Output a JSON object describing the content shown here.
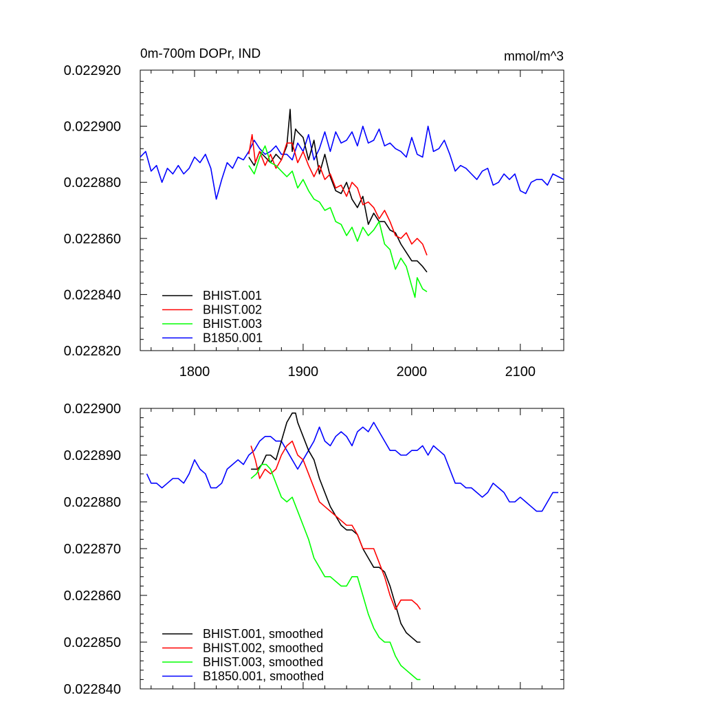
{
  "chart_data": [
    {
      "type": "line",
      "title": "0m-700m DOPr, IND",
      "units": "mmol/m^3",
      "xlim": [
        1750,
        2140
      ],
      "ylim": [
        0.02282,
        0.02292
      ],
      "xticks": [
        1800,
        1900,
        2000,
        2100
      ],
      "xtick_labels": [
        "1800",
        "1900",
        "2000",
        "2100"
      ],
      "yticks": [
        0.02282,
        0.02284,
        0.02286,
        0.02288,
        0.0229,
        0.02292
      ],
      "ytick_labels": [
        "0.022820",
        "0.022840",
        "0.022860",
        "0.022880",
        "0.022900",
        "0.022920"
      ],
      "legend_position": "bottom-left",
      "series": [
        {
          "name": "BHIST.001",
          "color": "#000000",
          "x": [
            1850,
            1855,
            1860,
            1865,
            1870,
            1875,
            1880,
            1885,
            1888,
            1890,
            1893,
            1895,
            1900,
            1905,
            1910,
            1915,
            1920,
            1925,
            1930,
            1935,
            1940,
            1945,
            1950,
            1955,
            1960,
            1965,
            1970,
            1975,
            1980,
            1985,
            1990,
            1995,
            2000,
            2005,
            2010,
            2014
          ],
          "y": [
            0.022889,
            0.022886,
            0.022891,
            0.022889,
            0.022887,
            0.02289,
            0.022888,
            0.022893,
            0.022906,
            0.022891,
            0.022899,
            0.022898,
            0.022896,
            0.022888,
            0.022895,
            0.022883,
            0.02289,
            0.022882,
            0.022877,
            0.022876,
            0.02288,
            0.022874,
            0.022871,
            0.022875,
            0.022865,
            0.022869,
            0.022866,
            0.022866,
            0.022863,
            0.022862,
            0.022858,
            0.022855,
            0.022852,
            0.022852,
            0.02285,
            0.022848
          ]
        },
        {
          "name": "BHIST.002",
          "color": "#ff0000",
          "x": [
            1850,
            1853,
            1856,
            1860,
            1865,
            1870,
            1875,
            1880,
            1885,
            1890,
            1895,
            1900,
            1905,
            1910,
            1915,
            1920,
            1925,
            1930,
            1935,
            1940,
            1945,
            1950,
            1955,
            1960,
            1965,
            1970,
            1975,
            1980,
            1985,
            1990,
            1995,
            2000,
            2005,
            2010,
            2014
          ],
          "y": [
            0.02289,
            0.022897,
            0.022887,
            0.022891,
            0.022886,
            0.02289,
            0.022885,
            0.022888,
            0.022894,
            0.022894,
            0.022887,
            0.022891,
            0.022886,
            0.022882,
            0.022886,
            0.022881,
            0.022883,
            0.022878,
            0.022879,
            0.022875,
            0.02288,
            0.022878,
            0.022872,
            0.022873,
            0.022871,
            0.022867,
            0.02287,
            0.022866,
            0.022861,
            0.02286,
            0.022862,
            0.022858,
            0.02286,
            0.022858,
            0.022854
          ]
        },
        {
          "name": "BHIST.003",
          "color": "#00ff00",
          "x": [
            1850,
            1855,
            1860,
            1865,
            1870,
            1875,
            1880,
            1885,
            1890,
            1895,
            1900,
            1905,
            1910,
            1915,
            1920,
            1925,
            1930,
            1935,
            1940,
            1945,
            1950,
            1955,
            1960,
            1965,
            1970,
            1975,
            1980,
            1985,
            1990,
            1995,
            2000,
            2003,
            2005,
            2010,
            2014
          ],
          "y": [
            0.022886,
            0.022883,
            0.022889,
            0.022893,
            0.022887,
            0.022886,
            0.022884,
            0.022882,
            0.022884,
            0.022878,
            0.022881,
            0.022877,
            0.022874,
            0.022873,
            0.02287,
            0.022871,
            0.022866,
            0.022865,
            0.022861,
            0.022864,
            0.022859,
            0.022864,
            0.022861,
            0.022863,
            0.022866,
            0.022858,
            0.022856,
            0.022849,
            0.022853,
            0.02285,
            0.022843,
            0.022839,
            0.022846,
            0.022842,
            0.022841
          ]
        },
        {
          "name": "B1850.001",
          "color": "#0000ff",
          "x": [
            1750,
            1755,
            1760,
            1765,
            1770,
            1775,
            1780,
            1785,
            1790,
            1795,
            1800,
            1805,
            1810,
            1815,
            1820,
            1825,
            1830,
            1835,
            1840,
            1845,
            1850,
            1855,
            1860,
            1865,
            1870,
            1875,
            1880,
            1885,
            1890,
            1895,
            1900,
            1905,
            1910,
            1915,
            1920,
            1925,
            1930,
            1935,
            1940,
            1945,
            1950,
            1955,
            1960,
            1965,
            1970,
            1975,
            1980,
            1985,
            1990,
            1995,
            2000,
            2005,
            2010,
            2015,
            2020,
            2025,
            2030,
            2035,
            2040,
            2045,
            2050,
            2055,
            2060,
            2065,
            2070,
            2075,
            2080,
            2085,
            2090,
            2095,
            2100,
            2105,
            2110,
            2115,
            2120,
            2125,
            2130,
            2135,
            2140
          ],
          "y": [
            0.022889,
            0.022891,
            0.022884,
            0.022886,
            0.02288,
            0.022885,
            0.022883,
            0.022886,
            0.022883,
            0.022885,
            0.022889,
            0.022887,
            0.02289,
            0.022885,
            0.022874,
            0.022881,
            0.022887,
            0.022885,
            0.022889,
            0.022888,
            0.022891,
            0.022895,
            0.022892,
            0.02289,
            0.022891,
            0.022893,
            0.02289,
            0.02289,
            0.022888,
            0.022894,
            0.022891,
            0.022897,
            0.022888,
            0.022892,
            0.022898,
            0.022891,
            0.022898,
            0.022894,
            0.022895,
            0.022898,
            0.022893,
            0.0229,
            0.022894,
            0.022895,
            0.022899,
            0.022893,
            0.022894,
            0.022892,
            0.022891,
            0.022889,
            0.022896,
            0.02289,
            0.022889,
            0.0229,
            0.022891,
            0.022892,
            0.022895,
            0.02289,
            0.022884,
            0.022886,
            0.022885,
            0.022883,
            0.022881,
            0.022884,
            0.022885,
            0.022879,
            0.02288,
            0.022883,
            0.022881,
            0.022883,
            0.022877,
            0.022876,
            0.02288,
            0.022881,
            0.022881,
            0.022879,
            0.022883,
            0.022882,
            0.022881
          ]
        }
      ]
    },
    {
      "type": "line",
      "xlim": [
        1750,
        2140
      ],
      "ylim": [
        0.02284,
        0.0229
      ],
      "xticks": [
        1800,
        1900,
        2000,
        2100
      ],
      "yticks": [
        0.02284,
        0.02285,
        0.02286,
        0.02287,
        0.02288,
        0.02289,
        0.0229
      ],
      "ytick_labels": [
        "0.022840",
        "0.022850",
        "0.022860",
        "0.022870",
        "0.022880",
        "0.022890",
        "0.022900"
      ],
      "legend_position": "bottom-left",
      "series": [
        {
          "name": "BHIST.001, smoothed",
          "color": "#000000",
          "x": [
            1852,
            1858,
            1862,
            1866,
            1870,
            1875,
            1880,
            1885,
            1890,
            1893,
            1895,
            1900,
            1905,
            1910,
            1915,
            1920,
            1925,
            1930,
            1935,
            1940,
            1945,
            1950,
            1955,
            1960,
            1965,
            1970,
            1975,
            1980,
            1985,
            1990,
            1995,
            2000,
            2005,
            2008
          ],
          "y": [
            0.022887,
            0.022887,
            0.022888,
            0.02289,
            0.02289,
            0.022889,
            0.022893,
            0.022897,
            0.022899,
            0.022899,
            0.022897,
            0.022894,
            0.022891,
            0.022889,
            0.022885,
            0.022882,
            0.022879,
            0.022877,
            0.022875,
            0.022874,
            0.022874,
            0.022873,
            0.02287,
            0.022868,
            0.022866,
            0.022866,
            0.022865,
            0.022862,
            0.022858,
            0.022854,
            0.022852,
            0.022851,
            0.02285,
            0.02285
          ]
        },
        {
          "name": "BHIST.002, smoothed",
          "color": "#ff0000",
          "x": [
            1852,
            1856,
            1860,
            1865,
            1870,
            1875,
            1880,
            1885,
            1890,
            1895,
            1900,
            1905,
            1910,
            1915,
            1920,
            1925,
            1930,
            1935,
            1940,
            1945,
            1950,
            1955,
            1960,
            1965,
            1970,
            1975,
            1980,
            1985,
            1990,
            1995,
            2000,
            2005,
            2008
          ],
          "y": [
            0.022892,
            0.022889,
            0.022885,
            0.022887,
            0.022886,
            0.022887,
            0.02289,
            0.022892,
            0.022893,
            0.02289,
            0.022889,
            0.022886,
            0.022883,
            0.02288,
            0.022879,
            0.022878,
            0.022877,
            0.022876,
            0.022875,
            0.022875,
            0.022873,
            0.02287,
            0.02287,
            0.02287,
            0.022867,
            0.022864,
            0.02286,
            0.022857,
            0.022859,
            0.022859,
            0.022859,
            0.022858,
            0.022857
          ]
        },
        {
          "name": "BHIST.003, smoothed",
          "color": "#00ff00",
          "x": [
            1852,
            1857,
            1862,
            1866,
            1870,
            1875,
            1880,
            1885,
            1890,
            1895,
            1900,
            1905,
            1910,
            1915,
            1920,
            1925,
            1930,
            1935,
            1940,
            1945,
            1950,
            1955,
            1960,
            1965,
            1970,
            1975,
            1980,
            1985,
            1990,
            1995,
            2000,
            2005,
            2008
          ],
          "y": [
            0.022885,
            0.022886,
            0.022888,
            0.022888,
            0.022887,
            0.022884,
            0.022881,
            0.02288,
            0.022881,
            0.022878,
            0.022875,
            0.022872,
            0.022868,
            0.022866,
            0.022864,
            0.022864,
            0.022863,
            0.022862,
            0.022862,
            0.022864,
            0.022864,
            0.02286,
            0.022856,
            0.022853,
            0.022851,
            0.02285,
            0.02285,
            0.022847,
            0.022845,
            0.022844,
            0.022843,
            0.022842,
            0.022842
          ]
        },
        {
          "name": "B1850.001, smoothed",
          "color": "#0000ff",
          "x": [
            1756,
            1760,
            1765,
            1770,
            1775,
            1780,
            1785,
            1790,
            1795,
            1800,
            1805,
            1810,
            1815,
            1820,
            1825,
            1830,
            1835,
            1840,
            1845,
            1850,
            1855,
            1860,
            1865,
            1870,
            1875,
            1880,
            1885,
            1890,
            1895,
            1900,
            1905,
            1910,
            1915,
            1920,
            1925,
            1930,
            1935,
            1940,
            1945,
            1950,
            1955,
            1960,
            1965,
            1970,
            1975,
            1980,
            1985,
            1990,
            1995,
            2000,
            2005,
            2010,
            2015,
            2020,
            2025,
            2030,
            2035,
            2040,
            2045,
            2050,
            2055,
            2060,
            2065,
            2070,
            2075,
            2080,
            2085,
            2090,
            2095,
            2100,
            2105,
            2110,
            2115,
            2120,
            2125,
            2130,
            2135
          ],
          "y": [
            0.022886,
            0.022884,
            0.022884,
            0.022883,
            0.022884,
            0.022885,
            0.022885,
            0.022884,
            0.022886,
            0.022889,
            0.022887,
            0.022886,
            0.022883,
            0.022883,
            0.022884,
            0.022887,
            0.022888,
            0.022889,
            0.022888,
            0.02289,
            0.022891,
            0.022893,
            0.022894,
            0.022894,
            0.022893,
            0.022893,
            0.022891,
            0.022889,
            0.022887,
            0.022889,
            0.022891,
            0.022893,
            0.022896,
            0.022893,
            0.022892,
            0.022894,
            0.022895,
            0.022894,
            0.022892,
            0.022895,
            0.022896,
            0.022895,
            0.022897,
            0.022895,
            0.022893,
            0.022891,
            0.022891,
            0.02289,
            0.02289,
            0.022891,
            0.022891,
            0.022892,
            0.02289,
            0.022892,
            0.022891,
            0.02289,
            0.022887,
            0.022884,
            0.022884,
            0.022883,
            0.022883,
            0.022882,
            0.022881,
            0.022882,
            0.022884,
            0.022883,
            0.022882,
            0.02288,
            0.02288,
            0.022881,
            0.02288,
            0.022879,
            0.022878,
            0.022878,
            0.02288,
            0.022882,
            0.022882
          ]
        }
      ]
    }
  ]
}
